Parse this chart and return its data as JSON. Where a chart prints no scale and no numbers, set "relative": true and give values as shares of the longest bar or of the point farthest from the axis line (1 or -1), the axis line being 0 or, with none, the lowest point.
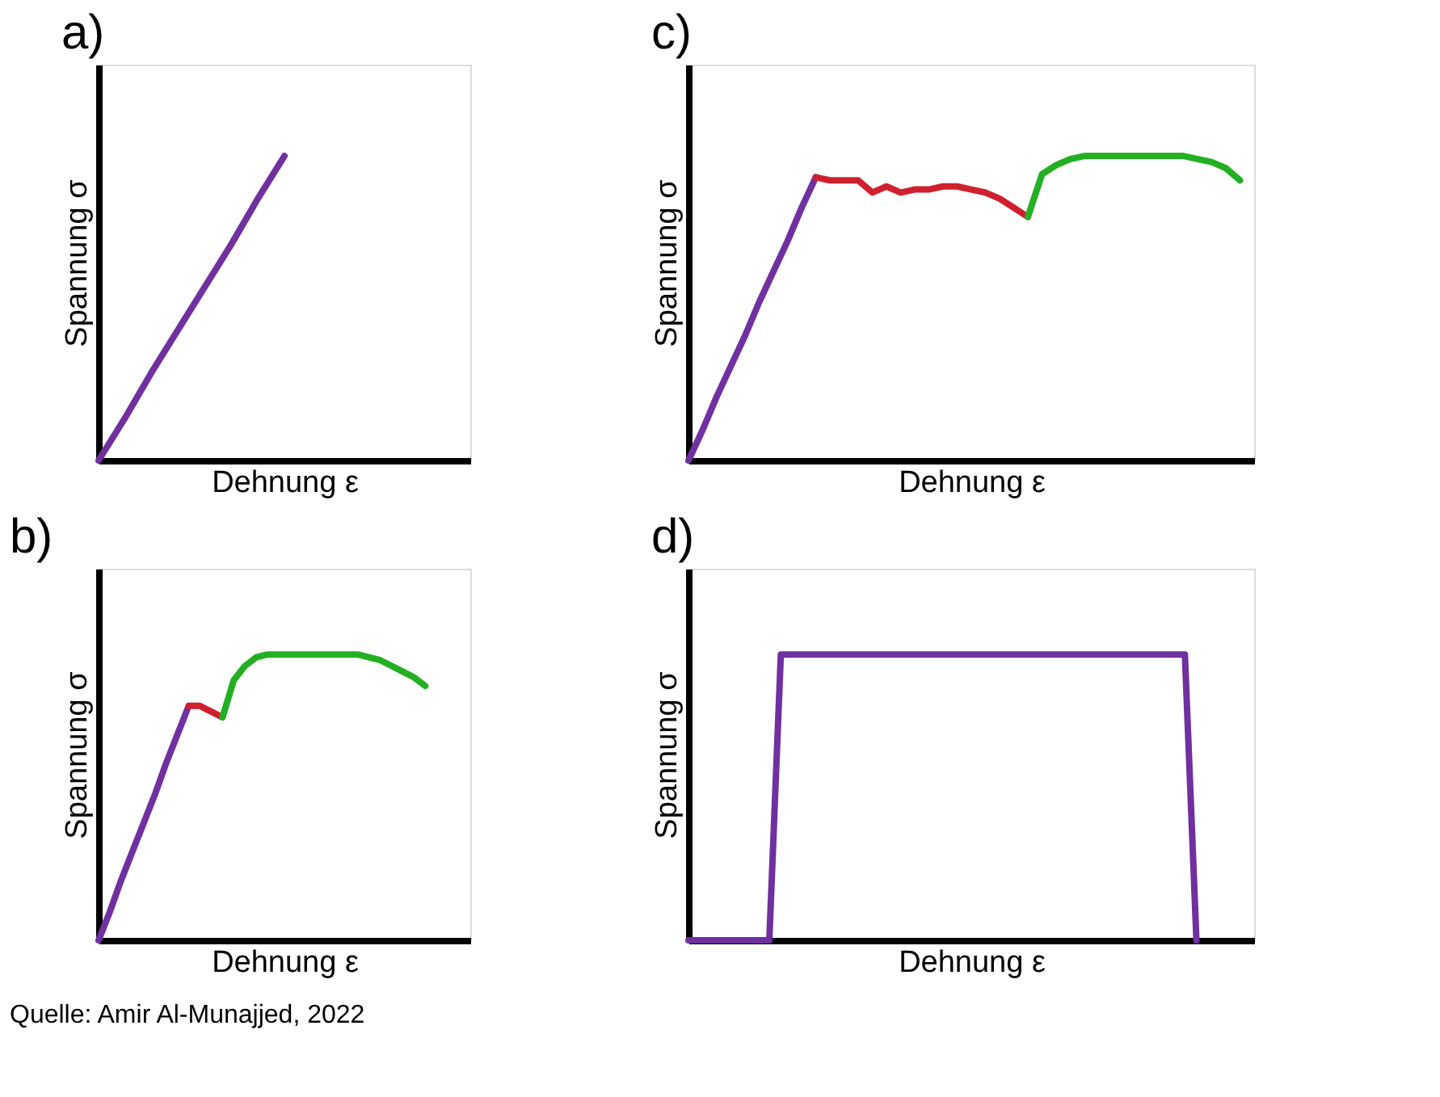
{
  "chart_data": [
    {
      "type": "line",
      "title": "a)",
      "xlabel": "Dehnung ε",
      "ylabel": "Spannung σ",
      "relative": true,
      "grid": false,
      "tick_labels": false,
      "marker": "none",
      "line_style": "solid",
      "categories": [
        null,
        null,
        null,
        null,
        null,
        null,
        null,
        null,
        null,
        null,
        null,
        null,
        null,
        null,
        null
      ],
      "series": [
        {
          "color": "#7030a0",
          "values": [
            0,
            0.14,
            0.29,
            0.43,
            0.57,
            0.71,
            0.86,
            1,
            null,
            null,
            null,
            null,
            null,
            null,
            null
          ]
        }
      ]
    },
    {
      "type": "line",
      "title": "c)",
      "xlabel": "Dehnung ε",
      "ylabel": "Spannung σ",
      "relative": true,
      "grid": false,
      "tick_labels": false,
      "marker": "none",
      "line_style": "solid",
      "categories": [
        null,
        null,
        null,
        null,
        null,
        null,
        null,
        null,
        null,
        null,
        null,
        null,
        null,
        null,
        null,
        null,
        null,
        null,
        null,
        null,
        null,
        null,
        null,
        null,
        null,
        null,
        null,
        null,
        null,
        null,
        null,
        null,
        null,
        null,
        null,
        null,
        null,
        null,
        null,
        null,
        null
      ],
      "series": [
        {
          "color": "#7030a0",
          "values": [
            0,
            0.1,
            0.21,
            0.31,
            0.41,
            0.52,
            0.62,
            0.72,
            0.83,
            0.93,
            null,
            null,
            null,
            null,
            null,
            null,
            null,
            null,
            null,
            null,
            null,
            null,
            null,
            null,
            null,
            null,
            null,
            null,
            null,
            null,
            null,
            null,
            null,
            null,
            null,
            null,
            null,
            null,
            null,
            null,
            null
          ]
        },
        {
          "color": "#d0202e",
          "values": [
            null,
            null,
            null,
            null,
            null,
            null,
            null,
            null,
            null,
            0.93,
            0.92,
            0.92,
            0.92,
            0.88,
            0.9,
            0.88,
            0.89,
            0.89,
            0.9,
            0.9,
            0.89,
            0.88,
            0.86,
            0.83,
            0.8,
            null,
            null,
            null,
            null,
            null,
            null,
            null,
            null,
            null,
            null,
            null,
            null,
            null,
            null,
            null,
            null
          ]
        },
        {
          "color": "#22b022",
          "values": [
            null,
            null,
            null,
            null,
            null,
            null,
            null,
            null,
            null,
            null,
            null,
            null,
            null,
            null,
            null,
            null,
            null,
            null,
            null,
            null,
            null,
            null,
            null,
            null,
            0.8,
            0.94,
            0.97,
            0.99,
            1.0,
            1.0,
            1.0,
            1.0,
            1.0,
            1.0,
            1.0,
            1.0,
            0.99,
            0.98,
            0.96,
            0.92,
            null
          ]
        }
      ]
    },
    {
      "type": "line",
      "title": "b)",
      "xlabel": "Dehnung ε",
      "ylabel": "Spannung σ",
      "relative": true,
      "grid": false,
      "tick_labels": false,
      "marker": "none",
      "line_style": "solid",
      "annotations": [
        "Quelle: Amir Al-Munajjed, 2022"
      ],
      "categories": [
        null,
        null,
        null,
        null,
        null,
        null,
        null,
        null,
        null,
        null,
        null,
        null,
        null,
        null,
        null,
        null,
        null,
        null,
        null,
        null,
        null,
        null,
        null,
        null,
        null,
        null,
        null,
        null,
        null,
        null,
        null,
        null,
        null,
        null
      ],
      "series": [
        {
          "color": "#7030a0",
          "values": [
            0,
            0.1,
            0.21,
            0.31,
            0.41,
            0.51,
            0.62,
            0.72,
            0.82,
            null,
            null,
            null,
            null,
            null,
            null,
            null,
            null,
            null,
            null,
            null,
            null,
            null,
            null,
            null,
            null,
            null,
            null,
            null,
            null,
            null,
            null,
            null,
            null,
            null
          ]
        },
        {
          "color": "#d0202e",
          "values": [
            null,
            null,
            null,
            null,
            null,
            null,
            null,
            null,
            0.82,
            0.82,
            0.8,
            0.78,
            null,
            null,
            null,
            null,
            null,
            null,
            null,
            null,
            null,
            null,
            null,
            null,
            null,
            null,
            null,
            null,
            null,
            null,
            null,
            null,
            null,
            null
          ]
        },
        {
          "color": "#22b022",
          "values": [
            null,
            null,
            null,
            null,
            null,
            null,
            null,
            null,
            null,
            null,
            null,
            0.78,
            0.91,
            0.96,
            0.99,
            1.0,
            1.0,
            1.0,
            1.0,
            1.0,
            1.0,
            1.0,
            1.0,
            1.0,
            0.99,
            0.98,
            0.96,
            0.94,
            0.92,
            0.89,
            null,
            null,
            null,
            null
          ]
        }
      ]
    },
    {
      "type": "line",
      "title": "d)",
      "xlabel": "Dehnung ε",
      "ylabel": "Spannung σ",
      "relative": true,
      "grid": false,
      "tick_labels": false,
      "marker": "none",
      "line_style": "solid",
      "categories": [
        null,
        null,
        null,
        null,
        null,
        null,
        null,
        null,
        null,
        null,
        null,
        null,
        null,
        null,
        null,
        null,
        null,
        null,
        null,
        null,
        null,
        null,
        null,
        null,
        null,
        null,
        null,
        null,
        null,
        null,
        null,
        null,
        null,
        null,
        null,
        null,
        null,
        null,
        null,
        null,
        null,
        null,
        null,
        null,
        null,
        null,
        null,
        null,
        null,
        null
      ],
      "series": [
        {
          "color": "#7030a0",
          "values": [
            0,
            0,
            0,
            0,
            0,
            0,
            0,
            0,
            1,
            1,
            1,
            1,
            1,
            1,
            1,
            1,
            1,
            1,
            1,
            1,
            1,
            1,
            1,
            1,
            1,
            1,
            1,
            1,
            1,
            1,
            1,
            1,
            1,
            1,
            1,
            1,
            1,
            1,
            1,
            1,
            1,
            1,
            1,
            1,
            0,
            null,
            null,
            null,
            null,
            null
          ]
        }
      ]
    }
  ]
}
